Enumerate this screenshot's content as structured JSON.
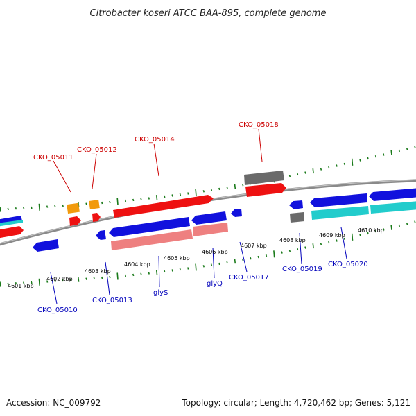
{
  "title": "Citrobacter koseri ATCC BAA-895, complete genome",
  "footer": {
    "accession": "Accession: NC_009792",
    "topology": "Topology: circular; Length: 4,720,462 bp; Genes: 5,121"
  },
  "colors": {
    "backbone": "#8a8a8a",
    "tick": "#1a7a1a",
    "label_red": "#cc0000",
    "label_blue": "#0000bb",
    "cds_red": "#ee1111",
    "cds_blue": "#1111dd",
    "cds_orange": "#f29a0c",
    "cds_grey": "#6a6a6a",
    "cds_pink": "#ee8080",
    "cds_cyan": "#22cccc"
  },
  "kbp_labels": [
    "4601 kbp",
    "4602 kbp",
    "4603 kbp",
    "4604 kbp",
    "4605 kbp",
    "4606 kbp",
    "4607 kbp",
    "4608 kbp",
    "4609 kbp",
    "4610 kbp"
  ],
  "gene_labels_top": [
    "CKO_05011",
    "CKO_05012",
    "CKO_05014",
    "CKO_05018"
  ],
  "gene_labels_bottom": [
    "CKO_05010",
    "CKO_05013",
    "glyS",
    "glyQ",
    "CKO_05017",
    "CKO_05019",
    "CKO_05020"
  ]
}
